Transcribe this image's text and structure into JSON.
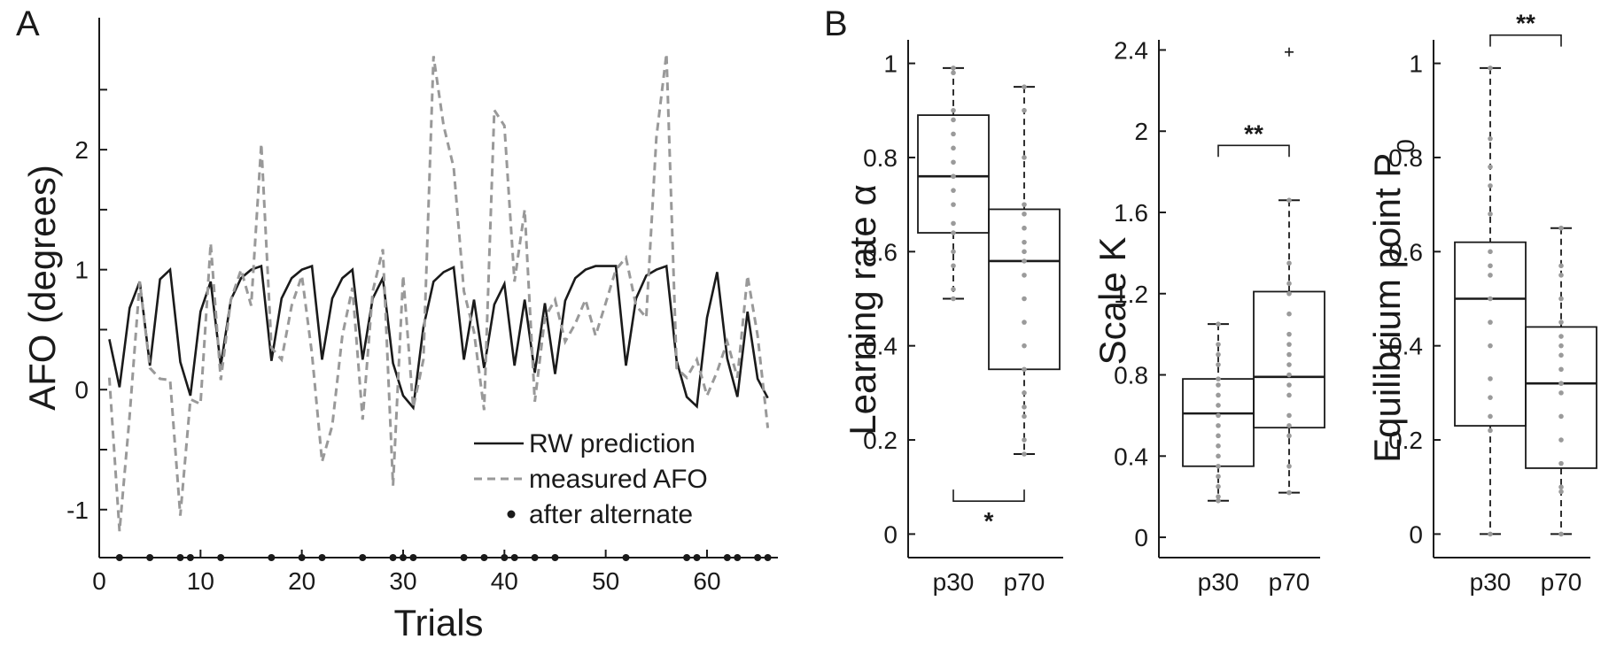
{
  "panel_labels": [
    "A",
    "B"
  ],
  "chart_data": [
    {
      "type": "line",
      "panel": "A",
      "xlabel": "Trials",
      "ylabel": "AFO (degrees)",
      "xlim": [
        0,
        67
      ],
      "ylim": [
        -1.4,
        3.1
      ],
      "xticks": [
        0,
        10,
        20,
        30,
        40,
        50,
        60
      ],
      "yticks": [
        -1,
        0,
        1,
        2
      ],
      "ytick_labels": [
        "-1",
        "0",
        "1",
        "2"
      ],
      "minor_yticks": [
        -0.5,
        0.5,
        1.5,
        2.5
      ],
      "grid": false,
      "legend_position": "bottom-right",
      "series": [
        {
          "name": "RW prediction",
          "style": "solid",
          "color": "#1a1a1a",
          "x": [
            1,
            2,
            3,
            4,
            5,
            6,
            7,
            8,
            9,
            10,
            11,
            12,
            13,
            14,
            15,
            16,
            17,
            18,
            19,
            20,
            21,
            22,
            23,
            24,
            25,
            26,
            27,
            28,
            29,
            30,
            31,
            32,
            33,
            34,
            35,
            36,
            37,
            38,
            39,
            40,
            41,
            42,
            43,
            44,
            45,
            46,
            47,
            48,
            49,
            50,
            51,
            52,
            53,
            54,
            55,
            56,
            57,
            58,
            59,
            60,
            61,
            62,
            63,
            64,
            65,
            66
          ],
          "y": [
            0.42,
            0.02,
            0.68,
            0.9,
            0.2,
            0.92,
            1.0,
            0.23,
            -0.05,
            0.65,
            0.9,
            0.2,
            0.75,
            0.93,
            1.0,
            1.03,
            0.24,
            0.76,
            0.93,
            1.0,
            1.03,
            0.25,
            0.76,
            0.93,
            1.0,
            0.25,
            0.76,
            0.93,
            0.22,
            -0.05,
            -0.15,
            0.52,
            0.9,
            0.98,
            1.02,
            0.25,
            0.75,
            0.18,
            0.71,
            0.88,
            0.2,
            0.75,
            0.14,
            0.72,
            0.13,
            0.74,
            0.93,
            1.0,
            1.03,
            1.03,
            1.03,
            0.2,
            0.76,
            0.95,
            1.0,
            1.03,
            0.24,
            -0.06,
            -0.14,
            0.6,
            0.98,
            0.26,
            -0.06,
            0.65,
            0.09,
            -0.07
          ]
        },
        {
          "name": "measured AFO",
          "style": "dashed",
          "color": "#999999",
          "x": [
            1,
            2,
            3,
            4,
            5,
            6,
            7,
            8,
            9,
            10,
            11,
            12,
            13,
            14,
            15,
            16,
            17,
            18,
            19,
            20,
            21,
            22,
            23,
            24,
            25,
            26,
            27,
            28,
            29,
            30,
            31,
            32,
            33,
            34,
            35,
            36,
            37,
            38,
            39,
            40,
            41,
            42,
            43,
            44,
            45,
            46,
            47,
            48,
            49,
            50,
            51,
            52,
            53,
            54,
            55,
            56,
            57,
            58,
            59,
            60,
            61,
            62,
            63,
            64,
            65,
            66
          ],
          "y": [
            0.1,
            -1.18,
            -0.22,
            0.9,
            0.18,
            0.09,
            0.08,
            -1.05,
            -0.08,
            -0.12,
            1.22,
            0.08,
            0.75,
            1.0,
            0.7,
            2.05,
            0.35,
            0.25,
            0.7,
            0.95,
            0.3,
            -0.6,
            -0.3,
            0.45,
            0.85,
            -0.25,
            0.82,
            1.17,
            -0.8,
            0.95,
            -0.15,
            0.25,
            2.78,
            2.2,
            1.85,
            0.82,
            0.48,
            -0.17,
            2.33,
            2.2,
            0.9,
            1.5,
            -0.1,
            0.6,
            0.75,
            0.4,
            0.55,
            0.75,
            0.45,
            0.72,
            1.0,
            1.1,
            0.7,
            0.6,
            2.1,
            2.8,
            0.18,
            0.1,
            0.25,
            -0.05,
            0.15,
            0.4,
            0.1,
            0.95,
            0.45,
            -0.32
          ]
        },
        {
          "name": "after alternate",
          "type": "scatter",
          "marker": "dot",
          "color": "#1a1a1a",
          "y_level": -1.4,
          "x": [
            2,
            5,
            8,
            9,
            12,
            17,
            20,
            22,
            26,
            29,
            30,
            31,
            36,
            38,
            40,
            41,
            43,
            45,
            52,
            58,
            59,
            62,
            63,
            65,
            66
          ]
        }
      ]
    },
    {
      "type": "box",
      "panel": "B",
      "ylabel": "Learning rate α",
      "categories": [
        "p30",
        "p70"
      ],
      "ylim": [
        -0.05,
        1.05
      ],
      "yticks": [
        0,
        0.2,
        0.4,
        0.6,
        0.8,
        1
      ],
      "ytick_labels": [
        "0",
        "0.2",
        "0.4",
        "0.6",
        "0.8",
        "1"
      ],
      "boxes": [
        {
          "whisker_low": 0.5,
          "q1": 0.64,
          "median": 0.76,
          "q3": 0.89,
          "whisker_high": 0.99,
          "points": [
            0.99,
            0.98,
            0.9,
            0.88,
            0.85,
            0.82,
            0.79,
            0.76,
            0.73,
            0.7,
            0.66,
            0.64,
            0.6,
            0.57,
            0.52,
            0.5
          ]
        },
        {
          "whisker_low": 0.17,
          "q1": 0.35,
          "median": 0.58,
          "q3": 0.69,
          "whisker_high": 0.95,
          "points": [
            0.95,
            0.9,
            0.8,
            0.7,
            0.68,
            0.65,
            0.62,
            0.6,
            0.58,
            0.55,
            0.5,
            0.45,
            0.4,
            0.35,
            0.3,
            0.27,
            0.25,
            0.2,
            0.17
          ]
        }
      ],
      "significance": [
        {
          "label": "*",
          "pair": [
            "p30",
            "p70"
          ],
          "y": 0.07,
          "bracket": "below"
        }
      ]
    },
    {
      "type": "box",
      "panel": "B",
      "ylabel": "Scale K",
      "categories": [
        "p30",
        "p70"
      ],
      "ylim": [
        -0.1,
        2.45
      ],
      "yticks": [
        0,
        0.4,
        0.8,
        1.2,
        1.6,
        2,
        2.4
      ],
      "ytick_labels": [
        "0",
        "0.4",
        "0.8",
        "1.2",
        "1.6",
        "2",
        "2.4"
      ],
      "boxes": [
        {
          "whisker_low": 0.18,
          "q1": 0.35,
          "median": 0.61,
          "q3": 0.78,
          "whisker_high": 1.05,
          "points": [
            1.05,
            0.95,
            0.9,
            0.85,
            0.78,
            0.75,
            0.7,
            0.65,
            0.6,
            0.55,
            0.5,
            0.45,
            0.4,
            0.35,
            0.3,
            0.25,
            0.2,
            0.18
          ]
        },
        {
          "whisker_low": 0.22,
          "q1": 0.54,
          "median": 0.79,
          "q3": 1.21,
          "whisker_high": 1.66,
          "outliers": [
            2.39
          ],
          "points": [
            1.66,
            1.35,
            1.25,
            1.2,
            1.1,
            1.0,
            0.95,
            0.9,
            0.85,
            0.8,
            0.75,
            0.7,
            0.6,
            0.55,
            0.5,
            0.35,
            0.22
          ]
        }
      ],
      "significance": [
        {
          "label": "**",
          "pair": [
            "p30",
            "p70"
          ],
          "y": 1.93,
          "bracket": "above"
        }
      ]
    },
    {
      "type": "box",
      "panel": "B",
      "ylabel": "Equilibrium point P",
      "ylabel_subscript": "0",
      "categories": [
        "p30",
        "p70"
      ],
      "ylim": [
        -0.05,
        1.05
      ],
      "yticks": [
        0,
        0.2,
        0.4,
        0.6,
        0.8,
        1
      ],
      "ytick_labels": [
        "0",
        "0.2",
        "0.4",
        "0.6",
        "0.8",
        "1"
      ],
      "boxes": [
        {
          "whisker_low": 0.0,
          "q1": 0.23,
          "median": 0.5,
          "q3": 0.62,
          "whisker_high": 0.99,
          "points": [
            0.99,
            0.84,
            0.78,
            0.74,
            0.68,
            0.6,
            0.57,
            0.55,
            0.5,
            0.45,
            0.4,
            0.33,
            0.29,
            0.25,
            0.22,
            0.0
          ]
        },
        {
          "whisker_low": 0.0,
          "q1": 0.14,
          "median": 0.32,
          "q3": 0.44,
          "whisker_high": 0.65,
          "points": [
            0.65,
            0.57,
            0.55,
            0.5,
            0.45,
            0.42,
            0.4,
            0.38,
            0.35,
            0.32,
            0.3,
            0.25,
            0.2,
            0.15,
            0.1,
            0.09,
            0.0
          ]
        }
      ],
      "significance": [
        {
          "label": "**",
          "pair": [
            "p30",
            "p70"
          ],
          "y": 1.06,
          "bracket": "above"
        }
      ]
    }
  ]
}
